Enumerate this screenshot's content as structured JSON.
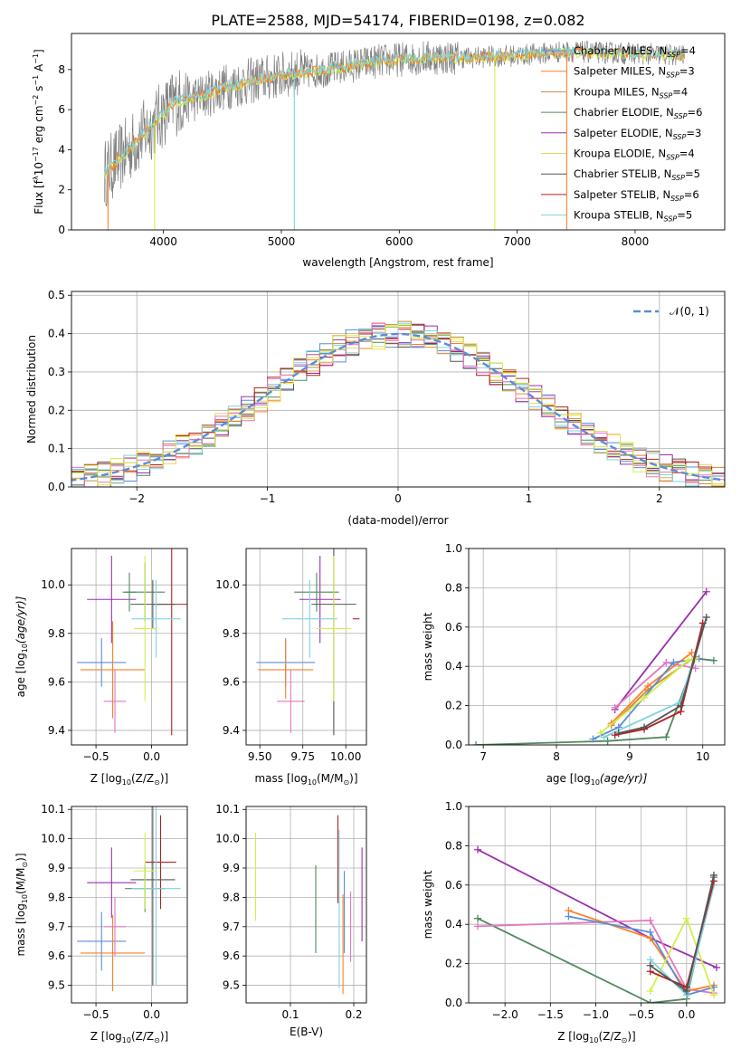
{
  "title": "PLATE=2588, MJD=54174, FIBERID=0198, z=0.082",
  "colors": {
    "chabrier_miles": "#5b8dd9",
    "salpeter_miles": "#ff7f27",
    "kroupa_miles": "#c88a3a",
    "chabrier_elodie": "#4f8a5b",
    "salpeter_elodie": "#9b2fae",
    "kroupa_elodie": "#e8d75c",
    "chabrier_stelib": "#555555",
    "salpeter_stelib": "#b22222",
    "kroupa_stelib": "#7fd3de",
    "pink": "#e377c2",
    "lime": "#d4ee4c",
    "gray_data": "#808080"
  },
  "chart_data": [
    {
      "type": "line",
      "id": "spectrum",
      "xlabel": "wavelength [Angstrom, rest frame]",
      "ylabel_parts": [
        "Flux [f",
        "λ",
        "10",
        "−17",
        " erg cm",
        "−2",
        " s",
        "−1",
        " A",
        "−1",
        "]"
      ],
      "xlim": [
        3220,
        8760
      ],
      "ylim": [
        0,
        9.8
      ],
      "xticks": [
        4000,
        5000,
        6000,
        7000,
        8000
      ],
      "yticks": [
        0,
        2,
        4,
        6,
        8
      ],
      "series": [
        {
          "name": "Chabrier MILES, N",
          "sub": "SSP",
          "suffix": "=4",
          "color": "#5b8dd9"
        },
        {
          "name": "Salpeter MILES, N",
          "sub": "SSP",
          "suffix": "=3",
          "color": "#ff7f27"
        },
        {
          "name": "Kroupa MILES, N",
          "sub": "SSP",
          "suffix": "=4",
          "color": "#c88a3a"
        },
        {
          "name": "Chabrier ELODIE, N",
          "sub": "SSP",
          "suffix": "=6",
          "color": "#4f8a5b"
        },
        {
          "name": "Salpeter ELODIE, N",
          "sub": "SSP",
          "suffix": "=3",
          "color": "#9b2fae"
        },
        {
          "name": "Kroupa ELODIE, N",
          "sub": "SSP",
          "suffix": "=4",
          "color": "#e8d75c"
        },
        {
          "name": "Chabrier STELIB, N",
          "sub": "SSP",
          "suffix": "=5",
          "color": "#555555"
        },
        {
          "name": "Salpeter STELIB, N",
          "sub": "SSP",
          "suffix": "=6",
          "color": "#b22222"
        },
        {
          "name": "Kroupa STELIB, N",
          "sub": "SSP",
          "suffix": "=5",
          "color": "#7fd3de"
        }
      ],
      "continuum": {
        "x": [
          3500,
          3700,
          3900,
          4100,
          4300,
          4500,
          4800,
          5100,
          5400,
          5800,
          6200,
          6600,
          7000,
          7400,
          8000,
          8400
        ],
        "y": [
          2.8,
          4.0,
          5.2,
          6.4,
          6.6,
          7.1,
          7.5,
          7.8,
          8.0,
          8.4,
          8.6,
          8.6,
          8.7,
          8.9,
          8.8,
          8.7
        ]
      }
    },
    {
      "type": "histogram",
      "id": "residuals",
      "xlabel": "(data-model)/error",
      "ylabel": "Normed distribution",
      "xlim": [
        -2.5,
        2.5
      ],
      "ylim": [
        0,
        0.51
      ],
      "xticks": [
        -2,
        -1,
        0,
        1,
        2
      ],
      "xtick_labels": [
        "−2",
        "−1",
        "0",
        "1",
        "2"
      ],
      "yticks": [
        0.0,
        0.1,
        0.2,
        0.3,
        0.4,
        0.5
      ],
      "ytick_labels": [
        "0.0",
        "0.1",
        "0.2",
        "0.3",
        "0.4",
        "0.5"
      ],
      "bin_width": 0.1,
      "reference": {
        "name": "𝒩(0, 1)",
        "color": "#5b8dd9"
      }
    },
    {
      "type": "errorbar",
      "id": "age_vs_Z",
      "xlabel_parts": [
        "Z [log",
        "10",
        "(Z/Z",
        "⊙",
        ")]"
      ],
      "ylabel_parts": [
        "age  [log",
        "10",
        "(age/yr)]"
      ],
      "xlim": [
        -0.72,
        0.32
      ],
      "ylim": [
        9.34,
        10.15
      ],
      "xticks": [
        -0.5,
        0.0
      ],
      "xtick_labels": [
        "−0.5",
        "0.0"
      ],
      "yticks": [
        9.4,
        9.6,
        9.8,
        10.0
      ],
      "ytick_labels": [
        "9.4",
        "9.6",
        "9.8",
        "10.0"
      ],
      "points": [
        {
          "x": -0.45,
          "xerr": 0.22,
          "y": 9.68,
          "yerr": 0.1,
          "color": "#5b8dd9"
        },
        {
          "x": -0.35,
          "xerr": 0.29,
          "y": 9.65,
          "yerr": 0.2,
          "color": "#ff7f27"
        },
        {
          "x": -0.33,
          "xerr": 0.1,
          "y": 9.52,
          "yerr": 0.13,
          "color": "#e377c2"
        },
        {
          "x": -0.36,
          "xerr": 0.22,
          "y": 9.94,
          "yerr": 0.18,
          "color": "#9b2fae"
        },
        {
          "x": -0.2,
          "xerr": 0.06,
          "y": 9.97,
          "yerr": 0.08,
          "color": "#4f8a5b"
        },
        {
          "x": -0.06,
          "xerr": 0.18,
          "y": 9.97,
          "yerr": 0.12,
          "color": "#4f8a5b"
        },
        {
          "x": 0.18,
          "xerr": 0.16,
          "y": 9.92,
          "yerr": 0.54,
          "color": "#b22222"
        },
        {
          "x": 0.01,
          "xerr": 0.2,
          "y": 9.92,
          "yerr": 0.1,
          "color": "#555555"
        },
        {
          "x": 0.04,
          "xerr": 0.22,
          "y": 9.86,
          "yerr": 0.16,
          "color": "#7fd3de"
        },
        {
          "x": -0.06,
          "xerr": 0.1,
          "y": 9.82,
          "yerr": 0.3,
          "color": "#d4ee4c"
        }
      ]
    },
    {
      "type": "errorbar",
      "id": "age_vs_mass",
      "xlabel_parts": [
        "mass [log",
        "10",
        "(M/M",
        "⊙",
        ")]"
      ],
      "ylabel_parts": [],
      "xlim": [
        9.42,
        10.12
      ],
      "ylim": [
        9.34,
        10.15
      ],
      "xticks": [
        9.5,
        9.75,
        10.0
      ],
      "xtick_labels": [
        "9.50",
        "9.75",
        "10.00"
      ],
      "yticks": [
        9.4,
        9.6,
        9.8,
        10.0
      ],
      "ytick_labels": [
        "9.4",
        "9.6",
        "9.8",
        "10.0"
      ],
      "points": [
        {
          "x": 9.65,
          "xerr": 0.17,
          "y": 9.68,
          "yerr": 0.1,
          "color": "#5b8dd9"
        },
        {
          "x": 9.65,
          "xerr": 0.16,
          "y": 9.65,
          "yerr": 0.12,
          "color": "#ff7f27"
        },
        {
          "x": 9.68,
          "xerr": 0.08,
          "y": 9.52,
          "yerr": 0.13,
          "color": "#e377c2"
        },
        {
          "x": 9.85,
          "xerr": 0.12,
          "y": 9.94,
          "yerr": 0.18,
          "color": "#9b2fae"
        },
        {
          "x": 9.83,
          "xerr": 0.13,
          "y": 9.97,
          "yerr": 0.08,
          "color": "#4f8a5b"
        },
        {
          "x": 9.93,
          "xerr": 0.13,
          "y": 9.92,
          "yerr": 0.54,
          "color": "#555555"
        },
        {
          "x": 9.79,
          "xerr": 0.16,
          "y": 9.86,
          "yerr": 0.16,
          "color": "#7fd3de"
        },
        {
          "x": 9.93,
          "xerr": 0.1,
          "y": 9.82,
          "yerr": 0.3,
          "color": "#d4ee4c"
        },
        {
          "x": 10.06,
          "xerr": 0.02,
          "y": 9.86,
          "yerr": 0.0,
          "color": "#b22222"
        }
      ]
    },
    {
      "type": "line",
      "id": "massweight_vs_age",
      "xlabel_parts": [
        "age  [log",
        "10",
        "(age/yr)]"
      ],
      "ylabel": "mass weight",
      "xlim": [
        6.8,
        10.3
      ],
      "ylim": [
        0,
        1.0
      ],
      "xticks": [
        7,
        8,
        9,
        10
      ],
      "xtick_labels": [
        "7",
        "8",
        "9",
        "10"
      ],
      "yticks": [
        0.0,
        0.2,
        0.4,
        0.6,
        0.8,
        1.0
      ],
      "ytick_labels": [
        "0.0",
        "0.2",
        "0.4",
        "0.6",
        "0.8",
        "1.0"
      ],
      "series": [
        {
          "color": "#4f8a5b",
          "x": [
            6.9,
            8.7,
            9.5,
            9.9,
            10.15
          ],
          "y": [
            0.0,
            0.02,
            0.04,
            0.44,
            0.43
          ]
        },
        {
          "color": "#9b2fae",
          "x": [
            8.8,
            10.05
          ],
          "y": [
            0.18,
            0.78
          ]
        },
        {
          "color": "#e377c2",
          "x": [
            8.8,
            9.5,
            9.9
          ],
          "y": [
            0.19,
            0.42,
            0.39
          ]
        },
        {
          "color": "#ff7f27",
          "x": [
            8.75,
            9.25,
            9.85
          ],
          "y": [
            0.11,
            0.3,
            0.47
          ]
        },
        {
          "color": "#c88a3a",
          "x": [
            8.75,
            9.25,
            9.9
          ],
          "y": [
            0.1,
            0.28,
            0.45
          ]
        },
        {
          "color": "#5b8dd9",
          "x": [
            8.5,
            8.85,
            9.6,
            9.95
          ],
          "y": [
            0.03,
            0.09,
            0.42,
            0.44
          ]
        },
        {
          "color": "#7fd3de",
          "x": [
            8.65,
            9.7,
            10.0
          ],
          "y": [
            0.04,
            0.22,
            0.6
          ]
        },
        {
          "color": "#d4ee4c",
          "x": [
            8.6,
            9.2,
            9.8,
            9.9
          ],
          "y": [
            0.06,
            0.24,
            0.43,
            0.44
          ]
        },
        {
          "color": "#b22222",
          "x": [
            8.8,
            9.2,
            9.7,
            10.0
          ],
          "y": [
            0.05,
            0.08,
            0.17,
            0.62
          ]
        },
        {
          "color": "#555555",
          "x": [
            8.85,
            9.2,
            9.7,
            10.05
          ],
          "y": [
            0.06,
            0.09,
            0.2,
            0.65
          ]
        }
      ]
    },
    {
      "type": "errorbar",
      "id": "mass_vs_Z",
      "xlabel_parts": [
        "Z [log",
        "10",
        "(Z/Z",
        "⊙",
        ")]"
      ],
      "ylabel_parts": [
        "mass [log",
        "10",
        "(M/M",
        "⊙",
        ")]"
      ],
      "xlim": [
        -0.72,
        0.32
      ],
      "ylim": [
        9.44,
        10.11
      ],
      "xticks": [
        -0.5,
        0.0
      ],
      "xtick_labels": [
        "−0.5",
        "0.0"
      ],
      "yticks": [
        9.5,
        9.6,
        9.7,
        9.8,
        9.9,
        10.0,
        10.1
      ],
      "ytick_labels": [
        "9.5",
        "9.6",
        "9.7",
        "9.8",
        "9.9",
        "10.0",
        "10.1"
      ],
      "points": [
        {
          "x": -0.45,
          "xerr": 0.22,
          "y": 9.65,
          "yerr": 0.1,
          "color": "#5b8dd9"
        },
        {
          "x": -0.35,
          "xerr": 0.29,
          "y": 9.61,
          "yerr": 0.13,
          "color": "#ff7f27"
        },
        {
          "x": -0.33,
          "xerr": 0.1,
          "y": 9.7,
          "yerr": 0.1,
          "color": "#e377c2"
        },
        {
          "x": -0.36,
          "xerr": 0.22,
          "y": 9.85,
          "yerr": 0.12,
          "color": "#9b2fae"
        },
        {
          "x": -0.06,
          "xerr": 0.18,
          "y": 9.83,
          "yerr": 0.08,
          "color": "#4f8a5b"
        },
        {
          "x": 0.08,
          "xerr": 0.14,
          "y": 9.92,
          "yerr": 0.16,
          "color": "#b22222"
        },
        {
          "x": 0.01,
          "xerr": 0.2,
          "y": 9.86,
          "yerr": 0.36,
          "color": "#555555"
        },
        {
          "x": 0.04,
          "xerr": 0.22,
          "y": 9.83,
          "yerr": 0.33,
          "color": "#7fd3de"
        },
        {
          "x": -0.06,
          "xerr": 0.1,
          "y": 9.89,
          "yerr": 0.13,
          "color": "#d4ee4c"
        }
      ]
    },
    {
      "type": "errorbar",
      "id": "mass_vs_ebv",
      "xlabel": "E(B-V)",
      "xlim": [
        0.03,
        0.22
      ],
      "ylim": [
        9.44,
        10.11
      ],
      "xticks": [
        0.1,
        0.2
      ],
      "xtick_labels": [
        "0.1",
        "0.2"
      ],
      "yticks": [
        9.5,
        9.6,
        9.7,
        9.8,
        9.9,
        10.0,
        10.1
      ],
      "ytick_labels": [
        "9.5",
        "9.6",
        "9.7",
        "9.8",
        "9.9",
        "10.0",
        "10.1"
      ],
      "points": [
        {
          "x": 0.045,
          "y": 9.87,
          "yerr": 0.15,
          "color": "#d4ee4c"
        },
        {
          "x": 0.14,
          "y": 9.76,
          "yerr": 0.15,
          "color": "#4f8a5b"
        },
        {
          "x": 0.175,
          "y": 9.93,
          "yerr": 0.15,
          "color": "#b22222"
        },
        {
          "x": 0.177,
          "y": 9.76,
          "yerr": 0.27,
          "color": "#7fd3de"
        },
        {
          "x": 0.183,
          "y": 9.64,
          "yerr": 0.17,
          "color": "#ff7f27"
        },
        {
          "x": 0.185,
          "y": 9.75,
          "yerr": 0.14,
          "color": "#5b8dd9"
        },
        {
          "x": 0.195,
          "y": 9.7,
          "yerr": 0.12,
          "color": "#e377c2"
        },
        {
          "x": 0.213,
          "y": 9.81,
          "yerr": 0.16,
          "color": "#9b2fae"
        }
      ]
    },
    {
      "type": "line",
      "id": "massweight_vs_Z",
      "xlabel_parts": [
        "Z [log",
        "10",
        "(Z/Z",
        "⊙",
        ")]"
      ],
      "ylabel": "mass weight",
      "xlim": [
        -2.4,
        0.42
      ],
      "ylim": [
        0,
        1.0
      ],
      "xticks": [
        -2.0,
        -1.5,
        -1.0,
        -0.5,
        0.0
      ],
      "xtick_labels": [
        "−2.0",
        "−1.5",
        "−1.0",
        "−0.5",
        "0.0"
      ],
      "yticks": [
        0.0,
        0.2,
        0.4,
        0.6,
        0.8,
        1.0
      ],
      "ytick_labels": [
        "0.0",
        "0.2",
        "0.4",
        "0.6",
        "0.8",
        "1.0"
      ],
      "series": [
        {
          "color": "#9b2fae",
          "x": [
            -2.3,
            -0.4,
            0.33
          ],
          "y": [
            0.78,
            0.33,
            0.18
          ]
        },
        {
          "color": "#4f8a5b",
          "x": [
            -2.3,
            -0.4,
            0.0,
            0.3
          ],
          "y": [
            0.43,
            0.0,
            0.02,
            0.64
          ]
        },
        {
          "color": "#e377c2",
          "x": [
            -2.3,
            -0.4,
            0.0,
            0.3
          ],
          "y": [
            0.39,
            0.42,
            0.07,
            0.05
          ]
        },
        {
          "color": "#ff7f27",
          "x": [
            -1.3,
            -0.4,
            0.0,
            0.3
          ],
          "y": [
            0.47,
            0.33,
            0.06,
            0.09
          ]
        },
        {
          "color": "#5b8dd9",
          "x": [
            -1.3,
            -0.4,
            0.0,
            0.3
          ],
          "y": [
            0.44,
            0.36,
            0.04,
            0.08
          ]
        },
        {
          "color": "#d4ee4c",
          "x": [
            -0.4,
            0.0,
            0.3
          ],
          "y": [
            0.06,
            0.43,
            0.04
          ]
        },
        {
          "color": "#7fd3de",
          "x": [
            -0.4,
            0.0,
            0.3
          ],
          "y": [
            0.22,
            0.04,
            0.6
          ]
        },
        {
          "color": "#b22222",
          "x": [
            -0.4,
            0.0,
            0.3
          ],
          "y": [
            0.16,
            0.08,
            0.62
          ]
        },
        {
          "color": "#555555",
          "x": [
            -0.4,
            0.0,
            0.3
          ],
          "y": [
            0.19,
            0.06,
            0.65
          ]
        }
      ]
    }
  ]
}
